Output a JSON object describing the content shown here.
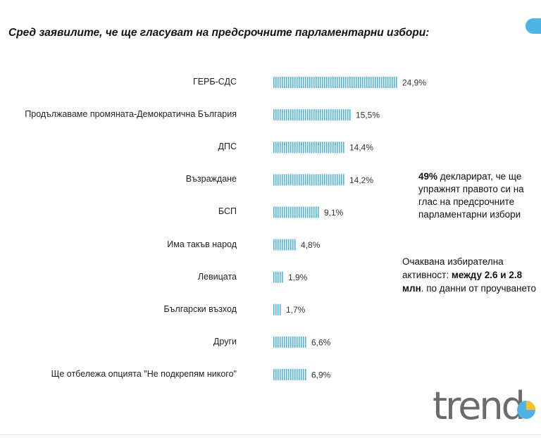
{
  "header": {
    "title": "Сред заявилите, че ще гласуват на предсрочните парламентарни избори:"
  },
  "chart_data": {
    "type": "bar",
    "orientation": "horizontal",
    "categories": [
      "ГЕРБ-СДС",
      "Продължаваме промяната-Демократична България",
      "ДПС",
      "Възраждане",
      "БСП",
      "Има такъв народ",
      "Левицата",
      "Български възход",
      "Други",
      "Ще отбележа опцията \"Не подкрепям никого\""
    ],
    "values": [
      24.9,
      15.5,
      14.4,
      14.2,
      9.1,
      4.8,
      1.9,
      1.7,
      6.6,
      6.9
    ],
    "value_labels": [
      "24,9%",
      "15,5%",
      "14,4%",
      "14,2%",
      "9,1%",
      "4,8%",
      "1,9%",
      "1,7%",
      "6,6%",
      "6,9%"
    ],
    "unit": "%",
    "bar_color": "#4fb3e3",
    "bar_style": "striped",
    "grid": false
  },
  "notes": {
    "turnout_share_value": "49%",
    "turnout_share_text": " декларират, че ще упражнят правото си на глас на предсрочните парламентарни избори",
    "expected_prefix": "Очаквана избирателна активност: ",
    "expected_bold": "между 2.6 и 2.8 млн",
    "expected_suffix": ". по данни от проучването"
  },
  "logo": {
    "text": "trend"
  },
  "colors": {
    "accent": "#4fb3e3",
    "logo_grey": "#6b6b6b"
  }
}
